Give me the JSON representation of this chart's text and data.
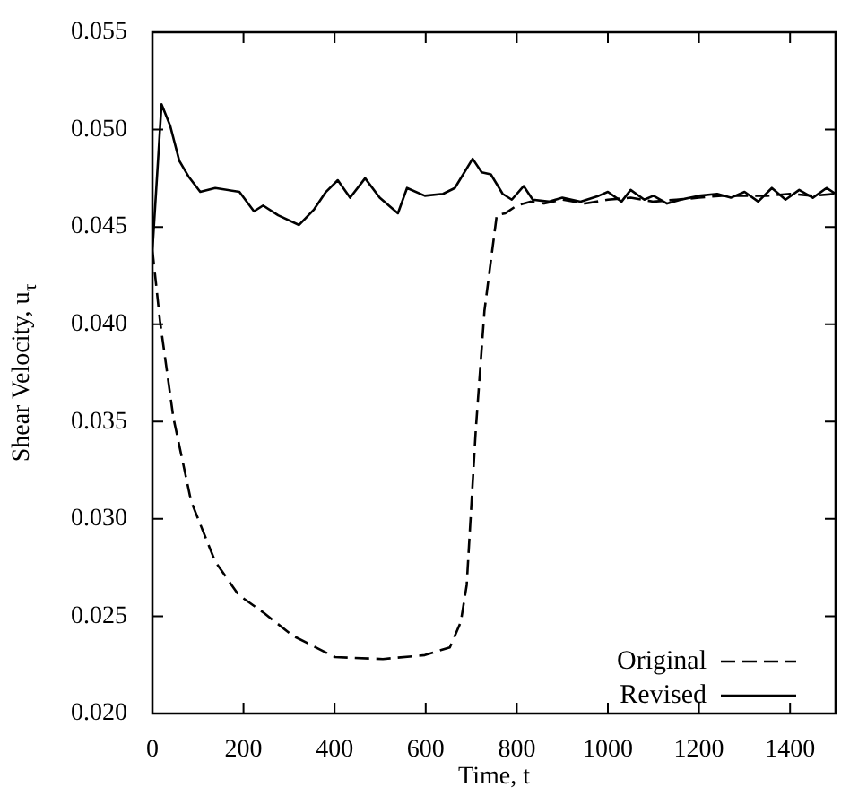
{
  "chart_data": {
    "type": "line",
    "xlabel": "Time, t",
    "ylabel": "Shear Velocity, u$_{τ}$",
    "xlim": [
      0,
      1500
    ],
    "ylim": [
      0.02,
      0.055
    ],
    "xticks": [
      0,
      200,
      400,
      600,
      800,
      1000,
      1200,
      1400
    ],
    "yticks": [
      {
        "value": 0.02,
        "label": "0.020"
      },
      {
        "value": 0.025,
        "label": "0.025"
      },
      {
        "value": 0.03,
        "label": "0.030"
      },
      {
        "value": 0.035,
        "label": "0.035"
      },
      {
        "value": 0.04,
        "label": "0.040"
      },
      {
        "value": 0.045,
        "label": "0.045"
      },
      {
        "value": 0.05,
        "label": "0.050"
      },
      {
        "value": 0.055,
        "label": "0.055"
      }
    ],
    "grid": false,
    "legend": "bottom right",
    "marker": "none",
    "series": [
      {
        "name": "Original",
        "color": "#000000",
        "line_style": "dashed",
        "x": [
          0,
          17,
          46,
          85,
          138,
          189,
          243,
          308,
          401,
          506,
          598,
          653,
          677,
          690,
          710,
          729,
          756,
          775,
          800,
          830,
          860,
          900,
          950,
          1000,
          1050,
          1100,
          1150,
          1200,
          1250,
          1300,
          1350,
          1400,
          1450,
          1500
        ],
        "values": [
          0.0438,
          0.0401,
          0.0352,
          0.0309,
          0.0278,
          0.0261,
          0.0252,
          0.024,
          0.0229,
          0.0228,
          0.023,
          0.0234,
          0.0247,
          0.0266,
          0.0346,
          0.0407,
          0.0456,
          0.0457,
          0.0461,
          0.0463,
          0.0462,
          0.0464,
          0.0462,
          0.0464,
          0.0465,
          0.0463,
          0.0464,
          0.0465,
          0.0466,
          0.0466,
          0.0466,
          0.0467,
          0.0466,
          0.0467
        ]
      },
      {
        "name": "Revised",
        "color": "#000000",
        "line_style": "solid",
        "x": [
          0,
          20,
          39,
          59,
          79,
          105,
          138,
          191,
          223,
          243,
          276,
          322,
          355,
          381,
          407,
          434,
          467,
          499,
          539,
          559,
          598,
          638,
          664,
          703,
          723,
          743,
          769,
          789,
          815,
          835,
          870,
          900,
          940,
          980,
          1000,
          1030,
          1050,
          1080,
          1100,
          1130,
          1160,
          1200,
          1240,
          1270,
          1300,
          1330,
          1360,
          1390,
          1420,
          1450,
          1480,
          1500
        ],
        "values": [
          0.0438,
          0.0513,
          0.0502,
          0.0484,
          0.0476,
          0.0468,
          0.047,
          0.0468,
          0.0458,
          0.0461,
          0.0456,
          0.0451,
          0.0459,
          0.0468,
          0.0474,
          0.0465,
          0.0475,
          0.0465,
          0.0457,
          0.047,
          0.0466,
          0.0467,
          0.047,
          0.0485,
          0.0478,
          0.0477,
          0.0467,
          0.0464,
          0.0471,
          0.0464,
          0.0463,
          0.0465,
          0.0463,
          0.0466,
          0.0468,
          0.0463,
          0.0469,
          0.0464,
          0.0466,
          0.0462,
          0.0464,
          0.0466,
          0.0467,
          0.0465,
          0.0468,
          0.0463,
          0.047,
          0.0464,
          0.0469,
          0.0465,
          0.047,
          0.0467
        ]
      }
    ]
  }
}
